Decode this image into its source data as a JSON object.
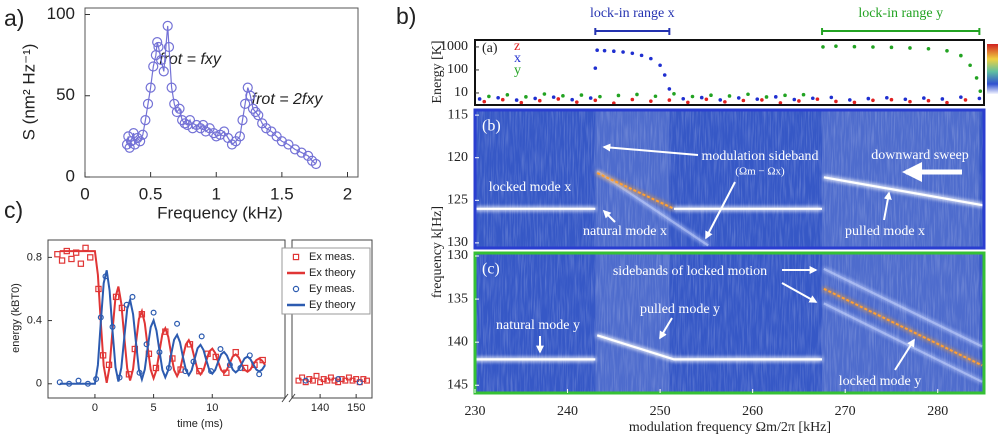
{
  "chart_data": [
    {
      "type": "line",
      "label": "a)",
      "xlabel": "Frequency (kHz)",
      "ylabel": "S (nm² Hz⁻¹)",
      "color": "#7472d6",
      "marker": "circle",
      "xlim": [
        0,
        2.08
      ],
      "ylim": [
        0,
        104
      ],
      "xticks": [
        0,
        0.5,
        1,
        1.5,
        2
      ],
      "yticks": [
        0,
        50,
        100
      ],
      "annotations": [
        "frot = fxy",
        "frot = 2fxy"
      ],
      "x": [
        0.32,
        0.33,
        0.34,
        0.35,
        0.37,
        0.38,
        0.4,
        0.42,
        0.44,
        0.46,
        0.48,
        0.5,
        0.52,
        0.54,
        0.55,
        0.56,
        0.58,
        0.6,
        0.63,
        0.64,
        0.66,
        0.68,
        0.7,
        0.72,
        0.74,
        0.76,
        0.78,
        0.8,
        0.82,
        0.85,
        0.88,
        0.9,
        0.92,
        0.95,
        0.98,
        1.0,
        1.03,
        1.06,
        1.09,
        1.12,
        1.15,
        1.18,
        1.2,
        1.22,
        1.24,
        1.26,
        1.28,
        1.3,
        1.32,
        1.35,
        1.38,
        1.42,
        1.46,
        1.5,
        1.55,
        1.6,
        1.65,
        1.7,
        1.73,
        1.76
      ],
      "values": [
        20,
        25,
        18,
        22,
        27,
        20,
        24,
        22,
        26,
        35,
        45,
        55,
        68,
        75,
        83,
        80,
        72,
        65,
        93,
        80,
        55,
        45,
        40,
        42,
        35,
        33,
        32,
        35,
        30,
        32,
        30,
        32,
        28,
        30,
        27,
        25,
        26,
        28,
        24,
        20,
        22,
        25,
        35,
        45,
        55,
        50,
        42,
        40,
        38,
        33,
        30,
        28,
        25,
        22,
        20,
        17,
        15,
        13,
        10,
        8
      ]
    },
    {
      "type": "line",
      "label": "c)",
      "xlabel": "time (ms)",
      "ylabel": "energy (kBT0)",
      "legend": "upper right",
      "xlim": [
        -4,
        16.2
      ],
      "ylim": [
        -0.09,
        0.91
      ],
      "xticks": [
        0,
        5,
        10
      ],
      "yticks": [
        0,
        0.4,
        0.8
      ],
      "series": [
        {
          "name": "Ex meas.",
          "color": "#e03535",
          "marker": "square",
          "x": [
            -3.2,
            -2.8,
            -2.4,
            -2.0,
            -1.6,
            -1.2,
            -0.8,
            -0.4,
            0.3,
            0.7,
            1.2,
            1.8,
            2.3,
            2.9,
            3.4,
            4.0,
            4.6,
            5.2,
            6.0,
            6.6,
            7.3,
            8.1,
            8.9,
            9.6,
            10.3,
            11.2,
            12.0,
            12.8,
            13.6,
            14.3
          ],
          "values": [
            0.82,
            0.78,
            0.84,
            0.79,
            0.83,
            0.76,
            0.86,
            0.8,
            0.6,
            0.18,
            0.12,
            0.55,
            0.48,
            0.06,
            0.22,
            0.44,
            0.19,
            0.1,
            0.33,
            0.16,
            0.09,
            0.25,
            0.08,
            0.19,
            0.17,
            0.07,
            0.2,
            0.1,
            0.12,
            0.15
          ]
        },
        {
          "name": "Ex theory",
          "color": "#e03535",
          "x": [
            -3,
            0,
            0.25,
            0.5,
            0.75,
            1,
            1.25,
            1.5,
            1.75,
            2,
            2.25,
            2.5,
            2.75,
            3,
            3.25,
            3.5,
            3.75,
            4,
            4.25,
            4.5,
            4.75,
            5,
            5.25,
            5.5,
            5.75,
            6,
            6.25,
            6.5,
            6.75,
            7,
            7.25,
            7.5,
            7.75,
            8,
            8.25,
            8.5,
            8.75,
            9,
            9.25,
            9.5,
            9.75,
            10,
            10.25,
            10.5,
            10.75,
            11,
            11.25,
            11.5,
            11.75,
            12,
            12.25,
            12.5,
            12.75,
            13,
            13.25,
            13.5,
            13.75,
            14,
            14.25,
            14.5
          ],
          "values": [
            0.84,
            0.84,
            0.689,
            0.39,
            0.113,
            0.006,
            0.108,
            0.337,
            0.548,
            0.616,
            0.508,
            0.294,
            0.097,
            0.021,
            0.094,
            0.259,
            0.41,
            0.46,
            0.383,
            0.23,
            0.09,
            0.035,
            0.088,
            0.207,
            0.315,
            0.351,
            0.297,
            0.187,
            0.087,
            0.048,
            0.087,
            0.171,
            0.249,
            0.276,
            0.236,
            0.158,
            0.087,
            0.059,
            0.086,
            0.148,
            0.205,
            0.222,
            0.195,
            0.139,
            0.088,
            0.068,
            0.089,
            0.132,
            0.173,
            0.186,
            0.167,
            0.126,
            0.09,
            0.076,
            0.09,
            0.122,
            0.15,
            0.16,
            0.146,
            0.118
          ]
        },
        {
          "name": "Ey meas.",
          "color": "#2c5bb0",
          "marker": "circle",
          "x": [
            -3.0,
            -2.2,
            -1.4,
            -0.6,
            0.1,
            0.5,
            0.9,
            1.5,
            2.1,
            2.7,
            3.2,
            3.8,
            4.4,
            5.0,
            5.5,
            6.3,
            7.0,
            7.7,
            8.4,
            9.1,
            9.9,
            10.7,
            11.5,
            12.4,
            13.2,
            14.0
          ],
          "values": [
            0.01,
            0.0,
            0.02,
            0.0,
            0.03,
            0.42,
            0.68,
            0.36,
            0.04,
            0.5,
            0.55,
            0.07,
            0.25,
            0.45,
            0.2,
            0.1,
            0.38,
            0.08,
            0.14,
            0.3,
            0.08,
            0.22,
            0.12,
            0.1,
            0.18,
            0.06
          ]
        },
        {
          "name": "Ey theory",
          "color": "#2c5bb0",
          "x": [
            -3,
            0,
            0.25,
            0.5,
            0.75,
            1,
            1.25,
            1.5,
            1.75,
            2,
            2.25,
            2.5,
            2.75,
            3,
            3.25,
            3.5,
            3.75,
            4,
            4.25,
            4.5,
            4.75,
            5,
            5.25,
            5.5,
            5.75,
            6,
            6.25,
            6.5,
            6.75,
            7,
            7.25,
            7.5,
            7.75,
            8,
            8.25,
            8.5,
            8.75,
            9,
            9.25,
            9.5,
            9.75,
            10,
            10.25,
            10.5,
            10.75,
            11,
            11.25,
            11.5,
            11.75,
            12,
            12.25,
            12.5,
            12.75,
            13,
            13.25,
            13.5,
            13.75,
            14,
            14.25,
            14.5
          ],
          "values": [
            0,
            0,
            0.119,
            0.39,
            0.637,
            0.718,
            0.59,
            0.337,
            0.104,
            0.014,
            0.1,
            0.294,
            0.473,
            0.531,
            0.44,
            0.259,
            0.092,
            0.028,
            0.091,
            0.23,
            0.358,
            0.401,
            0.336,
            0.207,
            0.087,
            0.041,
            0.087,
            0.187,
            0.279,
            0.31,
            0.263,
            0.171,
            0.087,
            0.054,
            0.086,
            0.158,
            0.225,
            0.247,
            0.214,
            0.148,
            0.087,
            0.064,
            0.087,
            0.139,
            0.186,
            0.202,
            0.179,
            0.132,
            0.089,
            0.072,
            0.089,
            0.126,
            0.16,
            0.172,
            0.156,
            0.122,
            0.09,
            0.078,
            0.09,
            0.118
          ]
        }
      ]
    },
    {
      "type": "scatter",
      "xlim": [
        132.2,
        154.4
      ],
      "ylim": [
        -0.09,
        0.91
      ],
      "xticks": [
        140,
        150
      ],
      "series": [
        {
          "color": "#e03535",
          "marker": "square",
          "x": [
            134,
            135,
            136,
            137,
            138,
            139,
            140,
            141,
            142,
            143,
            144,
            145,
            146,
            147,
            148,
            149,
            150,
            151,
            152,
            153
          ],
          "values": [
            0.02,
            0.04,
            0.01,
            0.03,
            0.02,
            0.05,
            0.01,
            0.03,
            0.02,
            0.04,
            0.02,
            0.01,
            0.03,
            0.02,
            0.04,
            0.02,
            0.03,
            0.01,
            0.03,
            0.02
          ]
        },
        {
          "color": "#2c5bb0",
          "marker": "circle",
          "x": [
            136,
            145,
            151
          ],
          "values": [
            0.02,
            0.03,
            0.01
          ]
        }
      ]
    },
    {
      "type": "scatter",
      "label": "b)",
      "sublabel": "(a)",
      "ylabel": "Energy [K]",
      "log_y": true,
      "xlim": [
        230,
        285
      ],
      "ylim": [
        3,
        2000
      ],
      "yticks": [
        10,
        100,
        1000
      ],
      "lockin": [
        {
          "label": "lock-in range x",
          "range": [
            243,
            251
          ],
          "color": "#2432b0"
        },
        {
          "label": "lock-in range y",
          "range": [
            267.5,
            284.5
          ],
          "color": "#22a322"
        }
      ],
      "series": [
        {
          "name": "z",
          "color": "#e02020",
          "x": [
            231,
            233,
            235,
            237,
            239,
            241,
            243,
            245,
            247,
            249,
            251,
            253,
            255,
            257,
            259,
            261,
            263,
            265,
            267,
            269,
            271,
            273,
            275,
            277,
            279,
            281,
            283
          ],
          "values": [
            4.2,
            5.1,
            3.8,
            4.6,
            5.5,
            4.0,
            4.8,
            3.6,
            5.2,
            4.4,
            4.9,
            3.9,
            5.3,
            4.1,
            4.7,
            5.0,
            3.7,
            4.5,
            5.4,
            4.3,
            3.9,
            4.8,
            5.1,
            4.2,
            4.6,
            3.8,
            5.0
          ]
        },
        {
          "name": "x",
          "color": "#1f2fd0",
          "x": [
            230.5,
            232.5,
            234.5,
            236.5,
            238.5,
            240.5,
            242.5,
            243.0,
            243.2,
            244,
            245,
            246,
            247,
            248,
            249,
            250,
            250.5,
            251,
            252.5,
            254.5,
            256.5,
            258.5,
            260.5,
            262.5,
            264.5,
            266.5,
            268.5,
            270.5,
            272.5,
            274.5,
            276.5,
            278.5,
            280.5,
            282.5,
            284.5
          ],
          "values": [
            5.5,
            6.2,
            4.9,
            5.8,
            6.6,
            5.1,
            6.0,
            120,
            720,
            690,
            650,
            600,
            530,
            430,
            310,
            160,
            60,
            15,
            5.6,
            6.3,
            5.0,
            6.1,
            5.4,
            6.8,
            5.2,
            5.9,
            6.4,
            5.0,
            5.7,
            6.2,
            5.3,
            6.0,
            5.5,
            6.6,
            5.8
          ]
        },
        {
          "name": "y",
          "color": "#22a322",
          "x": [
            231.5,
            233.5,
            235.5,
            237.5,
            239.5,
            241.5,
            243.5,
            245.5,
            247.5,
            249.5,
            251.5,
            253.5,
            255.5,
            257.5,
            259.5,
            261.5,
            263.5,
            265.5,
            267.6,
            269,
            271,
            273,
            275,
            277,
            279,
            281,
            282.5,
            283.5,
            284.2,
            284.6
          ],
          "values": [
            7.1,
            8.3,
            6.8,
            9.0,
            7.5,
            8.1,
            6.9,
            7.8,
            8.6,
            7.2,
            9.2,
            7.0,
            8.0,
            7.4,
            8.8,
            6.7,
            7.9,
            8.4,
            1000,
            1080,
            1020,
            990,
            960,
            900,
            830,
            680,
            420,
            160,
            45,
            12
          ]
        }
      ]
    },
    {
      "type": "spectrogram",
      "sublabel": "(b)",
      "ylabel": "frequency k[Hz]",
      "xlim": [
        230,
        285
      ],
      "ylim": [
        130.6,
        114.4
      ],
      "yticks": [
        115,
        120,
        125,
        130
      ],
      "annotations": [
        "modulation sideband",
        "(Ωm − Ωx)",
        "downward sweep",
        "locked mode x",
        "natural mode x",
        "pulled mode x"
      ],
      "series": [
        {
          "color": "#ffffff",
          "x": [
            230,
            243
          ],
          "values": [
            126,
            126
          ]
        },
        {
          "color": "#c9d6ff",
          "x": [
            243.2,
            255.2
          ],
          "values": [
            121.6,
            130.3
          ]
        },
        {
          "color": "#ffa030",
          "x": [
            243.2,
            251.5
          ],
          "values": [
            121.8,
            126
          ]
        },
        {
          "color": "#ffffff",
          "x": [
            251.5,
            267.5
          ],
          "values": [
            126,
            126
          ]
        },
        {
          "color": "#ffffff",
          "x": [
            267.7,
            285
          ],
          "values": [
            122.3,
            125.6
          ]
        }
      ]
    },
    {
      "type": "spectrogram",
      "sublabel": "(c)",
      "xlabel": "modulation frequency Ωm/2π [kHz]",
      "xlim": [
        230,
        285
      ],
      "ylim": [
        145.9,
        129.65
      ],
      "yticks": [
        130,
        135,
        140,
        145
      ],
      "xticks": [
        230,
        240,
        250,
        260,
        270,
        280
      ],
      "annotations": [
        "sidebands of locked motion",
        "natural mode y",
        "pulled mode y",
        "locked mode y"
      ],
      "series": [
        {
          "color": "#ffffff",
          "x": [
            230,
            243
          ],
          "values": [
            142,
            142
          ]
        },
        {
          "color": "#ffffff",
          "x": [
            243.2,
            251.5,
            267.5
          ],
          "values": [
            139.2,
            142,
            142
          ]
        },
        {
          "color": "#c9d6ff",
          "x": [
            267.7,
            284.8
          ],
          "values": [
            131.5,
            140.5
          ]
        },
        {
          "color": "#c9d6ff",
          "x": [
            267.7,
            284.8
          ],
          "values": [
            135.5,
            144.6
          ]
        },
        {
          "color": "#ffa030",
          "x": [
            267.7,
            284.8
          ],
          "values": [
            133.8,
            142.7
          ]
        }
      ]
    }
  ]
}
